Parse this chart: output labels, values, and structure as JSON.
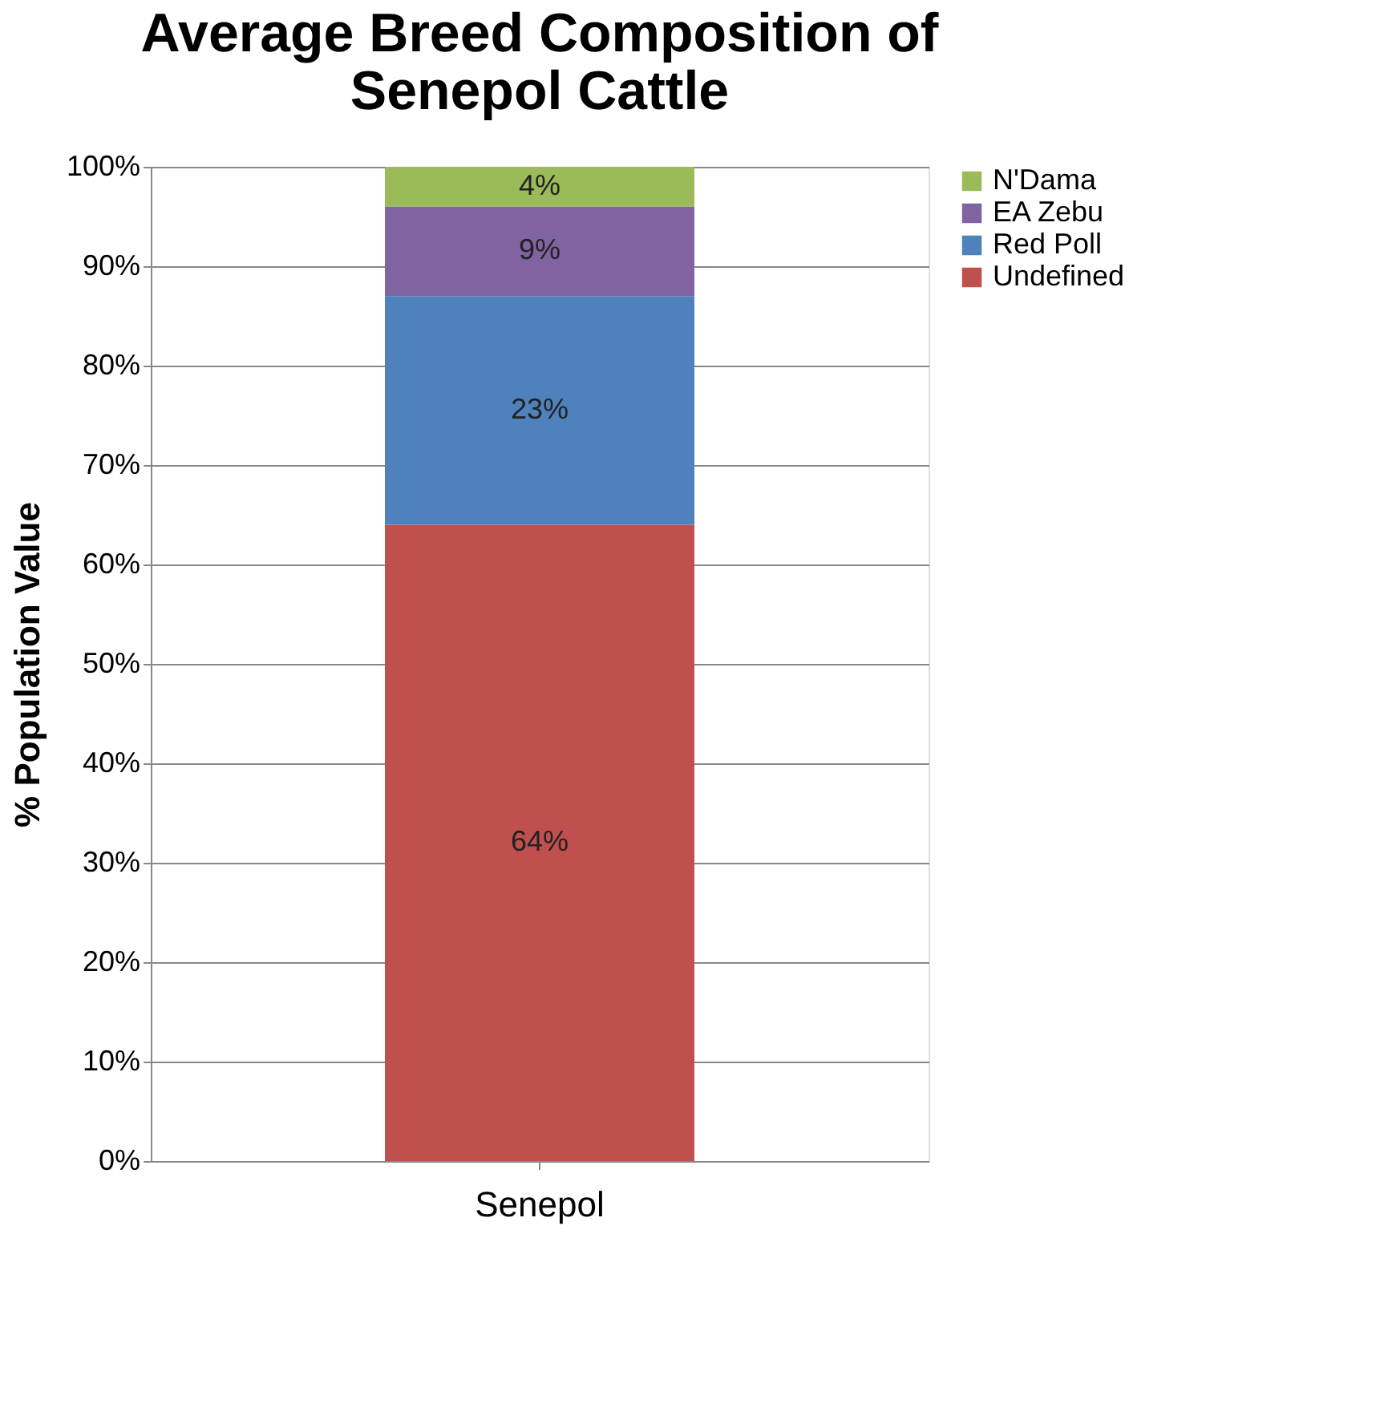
{
  "chart_data": {
    "type": "bar",
    "stacked": true,
    "title": [
      "Average Breed Composition of",
      "Senepol Cattle"
    ],
    "ylabel": "% Population Value",
    "categories": [
      "Senepol"
    ],
    "series": [
      {
        "name": "Undefined",
        "color": "#c0504d",
        "values": [
          64
        ],
        "value_labels": [
          "64%"
        ]
      },
      {
        "name": "Red Poll",
        "color": "#4f81bd",
        "values": [
          23
        ],
        "value_labels": [
          "23%"
        ]
      },
      {
        "name": "EA Zebu",
        "color": "#8064a2",
        "values": [
          9
        ],
        "value_labels": [
          "9%"
        ]
      },
      {
        "name": "N'Dama",
        "color": "#9bbb59",
        "values": [
          4
        ],
        "value_labels": [
          "4%"
        ]
      }
    ],
    "ylim": [
      0,
      100
    ],
    "yticks": [
      {
        "value": 0,
        "label": "0%"
      },
      {
        "value": 10,
        "label": "10%"
      },
      {
        "value": 20,
        "label": "20%"
      },
      {
        "value": 30,
        "label": "30%"
      },
      {
        "value": 40,
        "label": "40%"
      },
      {
        "value": 50,
        "label": "50%"
      },
      {
        "value": 60,
        "label": "60%"
      },
      {
        "value": 70,
        "label": "70%"
      },
      {
        "value": 80,
        "label": "80%"
      },
      {
        "value": 90,
        "label": "90%"
      },
      {
        "value": 100,
        "label": "100%"
      }
    ],
    "grid": "y",
    "legend": "right"
  }
}
